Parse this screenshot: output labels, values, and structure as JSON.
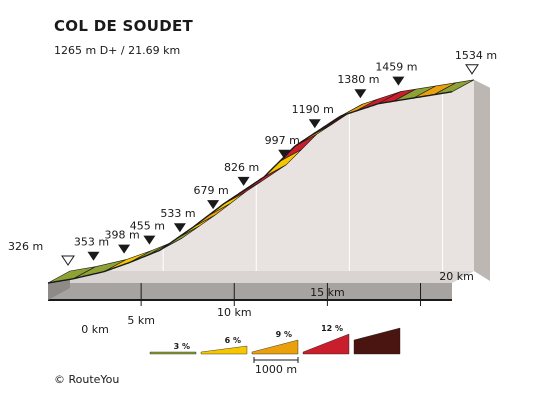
{
  "header": {
    "title": "COL DE SOUDET",
    "subtitle": "1265 m D+ / 21.69 km"
  },
  "copyright": "© RouteYou",
  "chart_data": {
    "type": "area",
    "title": "COL DE SOUDET",
    "subtitle": "1265 m D+ / 21.69 km",
    "total_km": 21.69,
    "x_ticks": [
      {
        "km": 0,
        "label": "0 km"
      },
      {
        "km": 5,
        "label": "5 km"
      },
      {
        "km": 10,
        "label": "10 km"
      },
      {
        "km": 15,
        "label": "15 km"
      },
      {
        "km": 20,
        "label": "20 km"
      }
    ],
    "points": [
      {
        "km": 0,
        "alt": 326,
        "label": "326 m",
        "marker": "start"
      },
      {
        "km": 1.37,
        "alt": 353,
        "label": "353 m",
        "marker": "kilo"
      },
      {
        "km": 3.01,
        "alt": 398,
        "label": "398 m",
        "marker": "kilo"
      },
      {
        "km": 4.37,
        "alt": 455,
        "label": "455 m",
        "marker": "kilo"
      },
      {
        "km": 6.01,
        "alt": 533,
        "label": "533 m",
        "marker": "kilo"
      },
      {
        "km": 7.79,
        "alt": 679,
        "label": "679 m",
        "marker": "kilo"
      },
      {
        "km": 9.43,
        "alt": 826,
        "label": "826 m",
        "marker": "kilo"
      },
      {
        "km": 11.61,
        "alt": 997,
        "label": "997 m",
        "marker": "kilo"
      },
      {
        "km": 13.25,
        "alt": 1190,
        "label": "1190 m",
        "marker": "kilo"
      },
      {
        "km": 15.7,
        "alt": 1380,
        "label": "1380 m",
        "marker": "kilo"
      },
      {
        "km": 17.74,
        "alt": 1459,
        "label": "1459 m",
        "marker": "kilo"
      },
      {
        "km": 21.69,
        "alt": 1534,
        "label": "1534 m",
        "marker": "end"
      }
    ],
    "segments": [
      {
        "from_km": 0,
        "to_km": 1.37,
        "category": 0
      },
      {
        "from_km": 1.37,
        "to_km": 3.01,
        "category": 0
      },
      {
        "from_km": 3.01,
        "to_km": 4.37,
        "category": 1
      },
      {
        "from_km": 4.37,
        "to_km": 5.33,
        "category": 0
      },
      {
        "from_km": 5.33,
        "to_km": 6.01,
        "category": 1
      },
      {
        "from_km": 6.01,
        "to_km": 6.97,
        "category": 0
      },
      {
        "from_km": 6.97,
        "to_km": 7.79,
        "category": 1
      },
      {
        "from_km": 7.79,
        "to_km": 8.61,
        "category": 2
      },
      {
        "from_km": 8.61,
        "to_km": 9.43,
        "category": 1
      },
      {
        "from_km": 9.43,
        "to_km": 10.25,
        "category": 3
      },
      {
        "from_km": 10.25,
        "to_km": 11.61,
        "category": 3
      },
      {
        "from_km": 11.61,
        "to_km": 12.43,
        "category": 1
      },
      {
        "from_km": 12.43,
        "to_km": 13.25,
        "category": 3
      },
      {
        "from_km": 13.25,
        "to_km": 14.07,
        "category": 2
      },
      {
        "from_km": 14.07,
        "to_km": 15.7,
        "category": 4
      },
      {
        "from_km": 15.7,
        "to_km": 16.52,
        "category": 2
      },
      {
        "from_km": 16.52,
        "to_km": 17.74,
        "category": 3
      },
      {
        "from_km": 17.74,
        "to_km": 18.56,
        "category": 3
      },
      {
        "from_km": 18.56,
        "to_km": 19.65,
        "category": 0
      },
      {
        "from_km": 19.65,
        "to_km": 20.73,
        "category": 2
      },
      {
        "from_km": 20.73,
        "to_km": 21.69,
        "category": 0
      }
    ],
    "legend": {
      "scale_label": "1000 m",
      "items": [
        {
          "label": "3 %",
          "color": "#8da232"
        },
        {
          "label": "6 %",
          "color": "#f6c600"
        },
        {
          "label": "9 %",
          "color": "#ea9f0c"
        },
        {
          "label": "12 %",
          "color": "#c91e2b"
        },
        {
          "label": "",
          "color": "#4a1410"
        }
      ]
    },
    "colors": {
      "top_outline": "#1a1a1a",
      "base_fill": "#a7a3a1",
      "wall_fill": "#e8e3e1",
      "label_color": "#1a1a1a"
    }
  }
}
